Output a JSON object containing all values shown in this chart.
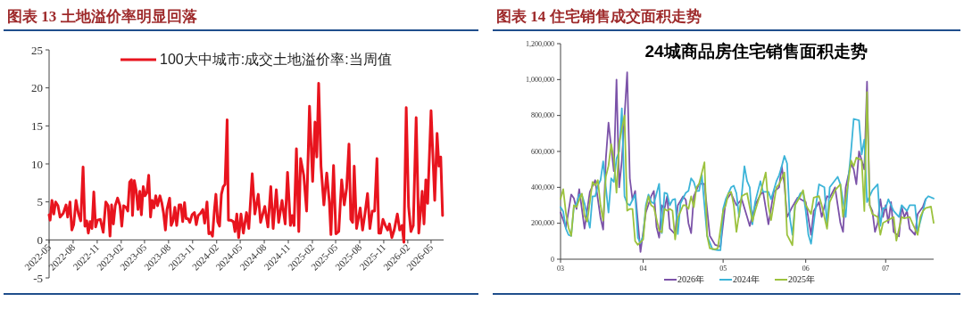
{
  "chart_data": [
    {
      "type": "line",
      "title": "图表 13 土地溢价率明显回落",
      "x": [
        "2022-05-01",
        "2022-05-05",
        "2022-05-12",
        "2022-05-19",
        "2022-05-26",
        "2022-06-04",
        "2022-06-12",
        "2022-06-24",
        "2022-07-05",
        "2022-07-11",
        "2022-07-20",
        "2022-07-27",
        "2022-08-03",
        "2022-08-12",
        "2022-08-21",
        "2022-08-30",
        "2022-09-08",
        "2022-09-15",
        "2022-09-22",
        "2022-09-28",
        "2022-10-05",
        "2022-10-12",
        "2022-10-19",
        "2022-10-26",
        "2022-11-02",
        "2022-11-13",
        "2022-11-24",
        "2022-12-04",
        "2022-12-13",
        "2022-12-20",
        "2022-12-26",
        "2023-01-02",
        "2023-01-09",
        "2023-01-18",
        "2023-01-27",
        "2023-02-03",
        "2023-02-10",
        "2023-02-19",
        "2023-02-26",
        "2023-03-05",
        "2023-03-12",
        "2023-03-16",
        "2023-03-23",
        "2023-03-30",
        "2023-04-06",
        "2023-04-13",
        "2023-04-19",
        "2023-04-26",
        "2023-05-03",
        "2023-05-10",
        "2023-05-17",
        "2023-05-24",
        "2023-05-30",
        "2023-06-06",
        "2023-06-13",
        "2023-06-20",
        "2023-06-29",
        "2023-07-06",
        "2023-07-13",
        "2023-07-20",
        "2023-07-26",
        "2023-08-05",
        "2023-08-11",
        "2023-08-18",
        "2023-08-25",
        "2023-09-01",
        "2023-09-10",
        "2023-09-17",
        "2023-09-24",
        "2023-10-01",
        "2023-10-07",
        "2023-10-14",
        "2023-10-21",
        "2023-10-30",
        "2023-11-08",
        "2023-11-15",
        "2023-11-22",
        "2023-12-01",
        "2023-12-10",
        "2023-12-17",
        "2023-12-26",
        "2024-01-02",
        "2024-01-09",
        "2024-01-16",
        "2024-01-23",
        "2024-01-29",
        "2024-02-05",
        "2024-02-12",
        "2024-02-19",
        "2024-02-26",
        "2024-03-04",
        "2024-03-12",
        "2024-03-17",
        "2024-03-26",
        "2024-04-05",
        "2024-04-11",
        "2024-04-18",
        "2024-04-25",
        "2024-05-04",
        "2024-05-13",
        "2024-05-25",
        "2024-06-03",
        "2024-06-16",
        "2024-06-26",
        "2024-07-09",
        "2024-07-18",
        "2024-08-03",
        "2024-08-15",
        "2024-08-26",
        "2024-09-04",
        "2024-09-16",
        "2024-09-25",
        "2024-10-08",
        "2024-10-20",
        "2024-10-29",
        "2024-11-09",
        "2024-11-16",
        "2024-11-23",
        "2024-12-02",
        "2024-12-11",
        "2024-12-18",
        "2024-12-30",
        "2025-01-10",
        "2025-01-21",
        "2025-02-02",
        "2025-02-11",
        "2025-02-18",
        "2025-02-25",
        "2025-03-06",
        "2025-03-17",
        "2025-03-28",
        "2025-04-07",
        "2025-04-13",
        "2025-04-23",
        "2025-05-02",
        "2025-05-13",
        "2025-05-24",
        "2025-06-03",
        "2025-06-12",
        "2025-06-21",
        "2025-06-28",
        "2025-07-05",
        "2025-07-11",
        "2025-07-20",
        "2025-08-03",
        "2025-08-12",
        "2025-08-21",
        "2025-08-31",
        "2025-09-09",
        "2025-09-18",
        "2025-09-27",
        "2025-10-06",
        "2025-10-13",
        "2025-10-20",
        "2025-10-29",
        "2025-11-07",
        "2025-11-16",
        "2025-11-23",
        "2025-12-02",
        "2025-12-11",
        "2025-12-23",
        "2026-01-01",
        "2026-01-10",
        "2026-01-17",
        "2026-01-26",
        "2026-02-04",
        "2026-02-13",
        "2026-02-22",
        "2026-03-05",
        "2026-03-15",
        "2026-03-28",
        "2026-04-04",
        "2026-04-11",
        "2026-04-18",
        "2026-05-01",
        "2026-05-15",
        "2026-05-24",
        "2026-05-31",
        "2026-06-07",
        "2026-06-14"
      ],
      "series": [
        {
          "name": "100大中城市:成交土地溢价率:当周值",
          "color": "#e8141e",
          "values": [
            3.3,
            2.6,
            5.2,
            3.4,
            5.0,
            4.5,
            3.0,
            3.5,
            4.6,
            3.0,
            5.0,
            1.3,
            2.0,
            5.2,
            3.5,
            2.5,
            9.6,
            1.8,
            2.5,
            0.9,
            2.4,
            1.5,
            6.3,
            1.7,
            2.6,
            2.7,
            1.0,
            5.0,
            4.5,
            0.5,
            4.6,
            2.1,
            4.5,
            5.5,
            4.5,
            1.8,
            4.5,
            4.3,
            3.8,
            7.6,
            7.9,
            3.2,
            7.8,
            6.5,
            4.0,
            6.4,
            3.3,
            7.0,
            5.8,
            6.2,
            8.5,
            3.0,
            5.2,
            4.2,
            5.8,
            4.5,
            5.8,
            4.9,
            3.5,
            1.3,
            4.0,
            5.5,
            1.9,
            2.5,
            4.3,
            1.9,
            4.6,
            4.6,
            2.4,
            4.9,
            2.8,
            2.8,
            2.3,
            3.3,
            3.6,
            2.0,
            3.2,
            3.5,
            4.0,
            2.2,
            5.0,
            0.8,
            1.0,
            0.5,
            3.8,
            6.0,
            2.4,
            1.8,
            6.0,
            7.0,
            7.3,
            15.8,
            2.6,
            2.6,
            2.4,
            1.1,
            3.4,
            0.3,
            3.4,
            0.9,
            3.6,
            1.5,
            8.7,
            3.4,
            6.0,
            2.3,
            4.4,
            1.7,
            7.0,
            1.5,
            6.6,
            2.3,
            5.2,
            2.1,
            8.9,
            1.9,
            3.2,
            1.9,
            12.0,
            1.1,
            10.7,
            8.5,
            3.8,
            17.6,
            7.7,
            15.5,
            10.9,
            20.6,
            9.7,
            4.6,
            8.8,
            5.0,
            0.7,
            9.8,
            0.8,
            1.1,
            7.9,
            4.6,
            6.8,
            12.6,
            2.7,
            2.3,
            9.7,
            1.5,
            4.2,
            1.3,
            3.4,
            6.1,
            1.5,
            3.8,
            3.8,
            10.7,
            0.9,
            0.9,
            2.7,
            1.9,
            1.3,
            2.1,
            0.3,
            1.3,
            3.4,
            1.3,
            1.9,
            -0.3,
            17.4,
            4.4,
            1.1,
            1.9,
            16.1,
            0.9,
            6.4,
            2.1,
            7.9,
            4.8,
            17.0,
            5.2,
            14.0,
            9.7,
            10.9,
            3.2
          ]
        }
      ],
      "xlim": [
        "2022-05-01",
        "2026-06-18"
      ],
      "xticks": [
        "2022-05",
        "2022-08",
        "2022-11",
        "2023-02",
        "2023-05",
        "2023-08",
        "2023-11",
        "2024-02",
        "2024-05",
        "2024-08",
        "2024-11",
        "2025-02",
        "2025-05",
        "2025-08",
        "2025-11",
        "2026-02",
        "2026-05"
      ],
      "ylim": [
        -5,
        25
      ],
      "yticks": [
        -5,
        0,
        5,
        10,
        15,
        20,
        25
      ],
      "legend": "top"
    },
    {
      "type": "line",
      "title": "图表 14 住宅销售成交面积走势",
      "subtitle": "24城商品房住宅销售面积走势",
      "series": [
        {
          "name": "2026年",
          "color": "#7b52a8",
          "x": [
            "--03-01",
            "--03-03",
            "--03-05",
            "--03-06",
            "--03-07",
            "--03-08",
            "--03-10",
            "--03-12",
            "--03-14",
            "--03-16",
            "--03-17",
            "--03-18",
            "--03-19",
            "--03-21",
            "--03-22",
            "--03-23",
            "--03-24",
            "--03-26",
            "--03-27",
            "--03-28",
            "--03-29",
            "--03-31",
            "--04-02",
            "--04-04",
            "--04-05",
            "--04-06",
            "--04-07",
            "--04-08",
            "--04-09",
            "--04-10",
            "--04-11",
            "--04-13",
            "--04-14",
            "--04-16",
            "--04-17",
            "--04-18",
            "--04-19",
            "--04-20",
            "--04-22",
            "--04-24",
            "--04-26",
            "--04-28",
            "--04-30",
            "--05-02",
            "--05-04",
            "--05-06",
            "--05-08",
            "--05-10",
            "--05-11",
            "--05-13",
            "--05-15",
            "--05-16",
            "--05-18",
            "--05-20",
            "--05-22",
            "--05-23",
            "--05-24",
            "--05-25",
            "--05-27",
            "--05-29",
            "--05-31",
            "--06-01",
            "--06-03",
            "--06-04",
            "--06-06",
            "--06-07",
            "--06-09",
            "--06-10",
            "--06-12",
            "--06-14",
            "--06-15",
            "--06-16",
            "--06-18",
            "--06-19",
            "--06-20",
            "--06-21",
            "--06-23",
            "--06-24",
            "--06-25",
            "--06-26",
            "--06-27",
            "--06-28",
            "--06-29",
            "--06-30",
            "--07-01",
            "--07-02",
            "--07-03",
            "--07-04",
            "--07-06",
            "--07-07",
            "--07-08",
            "--07-09",
            "--07-10",
            "--07-12",
            "--07-13",
            "--07-15",
            "--07-16"
          ],
          "values": [
            260000,
            175000,
            360000,
            340000,
            280000,
            390000,
            170000,
            375000,
            440000,
            230000,
            165000,
            560000,
            760000,
            490000,
            1000000,
            400000,
            550000,
            1040000,
            450000,
            330000,
            380000,
            40000,
            260000,
            350000,
            380000,
            180000,
            120000,
            300000,
            280000,
            350000,
            170000,
            140000,
            300000,
            350000,
            330000,
            200000,
            145000,
            350000,
            420000,
            420000,
            130000,
            80000,
            70000,
            326000,
            367000,
            300000,
            334000,
            235000,
            185000,
            300000,
            360000,
            375000,
            194000,
            375000,
            400000,
            517000,
            417000,
            235000,
            293000,
            343000,
            326000,
            318000,
            136000,
            268000,
            318000,
            235000,
            351000,
            343000,
            400000,
            202000,
            152000,
            400000,
            533000,
            500000,
            417000,
            600000,
            500000,
            988000,
            301000,
            268000,
            152000,
            202000,
            334000,
            235000,
            301000,
            202000,
            318000,
            152000,
            127000,
            293000,
            235000,
            268000,
            169000,
            136000,
            252000,
            293000,
            334000
          ]
        },
        {
          "name": "2024年",
          "color": "#3cb4d8",
          "x": [
            "--03-01",
            "--03-02",
            "--03-03",
            "--03-04",
            "--03-05",
            "--03-06",
            "--03-07",
            "--03-08",
            "--03-09",
            "--03-10",
            "--03-11",
            "--03-12",
            "--03-13",
            "--03-14",
            "--03-15",
            "--03-16",
            "--03-17",
            "--03-18",
            "--03-19",
            "--03-20",
            "--03-21",
            "--03-22",
            "--03-23",
            "--03-24",
            "--03-25",
            "--03-26",
            "--03-27",
            "--03-29",
            "--03-30",
            "--03-31",
            "--04-01",
            "--04-02",
            "--04-03",
            "--04-04",
            "--04-05",
            "--04-07",
            "--04-08",
            "--04-09",
            "--04-10",
            "--04-11",
            "--04-12",
            "--04-13",
            "--04-14",
            "--04-15",
            "--04-17",
            "--04-18",
            "--04-19",
            "--04-20",
            "--04-21",
            "--04-22",
            "--04-23",
            "--04-25",
            "--04-27",
            "--04-29",
            "--04-30",
            "--05-01",
            "--05-02",
            "--05-04",
            "--05-05",
            "--05-06",
            "--05-07",
            "--05-08",
            "--05-09",
            "--05-10",
            "--05-11",
            "--05-12",
            "--05-13",
            "--05-15",
            "--05-16",
            "--05-18",
            "--05-19",
            "--05-21",
            "--05-22",
            "--05-23",
            "--05-24",
            "--05-25",
            "--05-26",
            "--05-27",
            "--05-28",
            "--05-30",
            "--05-31",
            "--06-01",
            "--06-02",
            "--06-03",
            "--06-05",
            "--06-06",
            "--06-08",
            "--06-09",
            "--06-10",
            "--06-13",
            "--06-14",
            "--06-16",
            "--06-17",
            "--06-18",
            "--06-19",
            "--06-21",
            "--06-22",
            "--06-23",
            "--06-24",
            "--06-26",
            "--06-28",
            "--06-29",
            "--06-30",
            "--07-01",
            "--07-02",
            "--07-03",
            "--07-04",
            "--07-06",
            "--07-07",
            "--07-09",
            "--07-10",
            "--07-12",
            "--07-13",
            "--07-15",
            "--07-16",
            "--07-17",
            "--07-19"
          ],
          "values": [
            290000,
            265000,
            170000,
            135000,
            130000,
            290000,
            310000,
            360000,
            360000,
            310000,
            240000,
            175000,
            350000,
            350000,
            410000,
            440000,
            545000,
            400000,
            260000,
            450000,
            430000,
            560000,
            600000,
            840000,
            350000,
            310000,
            300000,
            360000,
            120000,
            90000,
            130000,
            300000,
            360000,
            320000,
            310000,
            420000,
            145000,
            370000,
            365000,
            300000,
            330000,
            335000,
            140000,
            310000,
            370000,
            380000,
            450000,
            430000,
            380000,
            380000,
            470000,
            130000,
            55000,
            50000,
            50000,
            280000,
            334000,
            400000,
            409000,
            367000,
            235000,
            360000,
            517000,
            434000,
            400000,
            194000,
            318000,
            434000,
            375000,
            375000,
            334000,
            434000,
            467000,
            517000,
            575000,
            533000,
            235000,
            136000,
            301000,
            367000,
            375000,
            268000,
            136000,
            86000,
            318000,
            417000,
            400000,
            185000,
            400000,
            459000,
            417000,
            235000,
            450000,
            600000,
            781000,
            773000,
            583000,
            666000,
            318000,
            384000,
            417000,
            185000,
            285000,
            285000,
            334000,
            301000,
            268000,
            235000,
            301000,
            268000,
            301000,
            301000,
            152000,
            268000,
            334000,
            351000,
            338000
          ]
        },
        {
          "name": "2025年",
          "color": "#9cc23e",
          "x": [
            "--03-01",
            "--03-02",
            "--03-03",
            "--03-04",
            "--03-05",
            "--03-06",
            "--03-07",
            "--03-08",
            "--03-09",
            "--03-10",
            "--03-11",
            "--03-13",
            "--03-14",
            "--03-15",
            "--03-16",
            "--03-17",
            "--03-18",
            "--03-19",
            "--03-20",
            "--03-21",
            "--03-22",
            "--03-23",
            "--03-25",
            "--03-26",
            "--03-27",
            "--03-28",
            "--03-29",
            "--03-30",
            "--04-01",
            "--04-02",
            "--04-03",
            "--04-04",
            "--04-05",
            "--04-07",
            "--04-08",
            "--04-09",
            "--04-10",
            "--04-11",
            "--04-12",
            "--04-13",
            "--04-14",
            "--04-16",
            "--04-17",
            "--04-18",
            "--04-19",
            "--04-20",
            "--04-21",
            "--04-22",
            "--04-24",
            "--04-25",
            "--04-26",
            "--04-28",
            "--04-29",
            "--05-01",
            "--05-02",
            "--05-03",
            "--05-04",
            "--05-05",
            "--05-06",
            "--05-08",
            "--05-09",
            "--05-10",
            "--05-12",
            "--05-13",
            "--05-15",
            "--05-17",
            "--05-18",
            "--05-19",
            "--05-21",
            "--05-22",
            "--05-24",
            "--05-25",
            "--05-27",
            "--05-28",
            "--05-30",
            "--05-31",
            "--06-01",
            "--06-03",
            "--06-04",
            "--06-06",
            "--06-07",
            "--06-09",
            "--06-10",
            "--06-12",
            "--06-14",
            "--06-15",
            "--06-17",
            "--06-18",
            "--06-19",
            "--06-20",
            "--06-22",
            "--06-23",
            "--06-24",
            "--06-25",
            "--06-26",
            "--06-28",
            "--06-29",
            "--06-30",
            "--07-02",
            "--07-04",
            "--07-05",
            "--07-07",
            "--07-08",
            "--07-10",
            "--07-11",
            "--07-13",
            "--07-14",
            "--07-15",
            "--07-16",
            "--07-18",
            "--07-19"
          ],
          "values": [
            335000,
            390000,
            260000,
            175000,
            130000,
            300000,
            290000,
            330000,
            365000,
            240000,
            210000,
            430000,
            410000,
            440000,
            300000,
            215000,
            460000,
            520000,
            640000,
            560000,
            370000,
            650000,
            800000,
            270000,
            280000,
            280000,
            100000,
            80000,
            110000,
            280000,
            350000,
            300000,
            290000,
            160000,
            150000,
            280000,
            270000,
            280000,
            270000,
            110000,
            230000,
            300000,
            300000,
            280000,
            350000,
            290000,
            400000,
            420000,
            540000,
            130000,
            60000,
            55000,
            60000,
            270000,
            301000,
            367000,
            375000,
            301000,
            152000,
            351000,
            360000,
            367000,
            210000,
            268000,
            367000,
            483000,
            301000,
            218000,
            400000,
            417000,
            483000,
            136000,
            78000,
            301000,
            351000,
            384000,
            301000,
            252000,
            343000,
            351000,
            301000,
            169000,
            318000,
            384000,
            417000,
            235000,
            434000,
            550000,
            517000,
            566000,
            550000,
            268000,
            930000,
            301000,
            252000,
            235000,
            136000,
            202000,
            218000,
            235000,
            103000,
            235000,
            227000,
            235000,
            202000,
            136000,
            235000,
            268000,
            285000,
            293000,
            202000
          ]
        }
      ],
      "xlim": [
        "--03-01",
        "--07-19"
      ],
      "xticks": [
        {
          "value": "--03-01",
          "label": "03"
        },
        {
          "value": "--04-01",
          "label": "04"
        },
        {
          "value": "--05-01",
          "label": "05"
        },
        {
          "value": "--06-01",
          "label": "06"
        },
        {
          "value": "--07-01",
          "label": "07"
        }
      ],
      "ylim": [
        0,
        1200000
      ],
      "yticks": [
        {
          "value": 0,
          "label": "0"
        },
        {
          "value": 200000,
          "label": "200,000"
        },
        {
          "value": 400000,
          "label": "400,000"
        },
        {
          "value": 600000,
          "label": "600,000"
        },
        {
          "value": 800000,
          "label": "800,000"
        },
        {
          "value": 1000000,
          "label": "1,000,000"
        },
        {
          "value": 1200000,
          "label": "1,200,000"
        }
      ],
      "legend": "bottom"
    }
  ]
}
